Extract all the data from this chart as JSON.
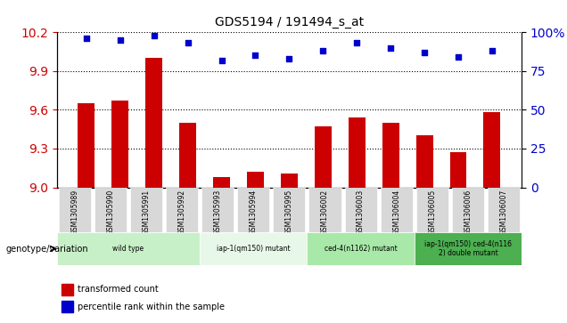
{
  "title": "GDS5194 / 191494_s_at",
  "samples": [
    "GSM1305989",
    "GSM1305990",
    "GSM1305991",
    "GSM1305992",
    "GSM1305993",
    "GSM1305994",
    "GSM1305995",
    "GSM1306002",
    "GSM1306003",
    "GSM1306004",
    "GSM1306005",
    "GSM1306006",
    "GSM1306007"
  ],
  "red_values": [
    9.65,
    9.67,
    10.0,
    9.5,
    9.08,
    9.12,
    9.11,
    9.47,
    9.54,
    9.5,
    9.4,
    9.27,
    9.58
  ],
  "blue_values": [
    96,
    95,
    98,
    93,
    82,
    85,
    83,
    88,
    93,
    90,
    87,
    84,
    88
  ],
  "ylim_left": [
    9.0,
    10.2
  ],
  "ylim_right": [
    0,
    100
  ],
  "yticks_left": [
    9.0,
    9.3,
    9.6,
    9.9,
    10.2
  ],
  "yticks_right": [
    0,
    25,
    50,
    75,
    100
  ],
  "groups": [
    {
      "label": "wild type",
      "indices": [
        0,
        1,
        2,
        3
      ],
      "color": "#c8f0c8"
    },
    {
      "label": "iap-1(qm150) mutant",
      "indices": [
        4,
        5,
        6
      ],
      "color": "#e8f8e8"
    },
    {
      "label": "ced-4(n1162) mutant",
      "indices": [
        7,
        8,
        9
      ],
      "color": "#a8e8a8"
    },
    {
      "label": "iap-1(qm150) ced-4(n116\n2) double mutant",
      "indices": [
        10,
        11,
        12
      ],
      "color": "#4caf50"
    }
  ],
  "red_color": "#cc0000",
  "blue_color": "#0000cc",
  "bar_width": 0.5,
  "grid_color": "#000000",
  "bg_color": "#d8d8d8",
  "left_label_color": "#cc0000",
  "right_label_color": "#0000cc",
  "genotype_label": "genotype/variation",
  "legend_red": "transformed count",
  "legend_blue": "percentile rank within the sample"
}
